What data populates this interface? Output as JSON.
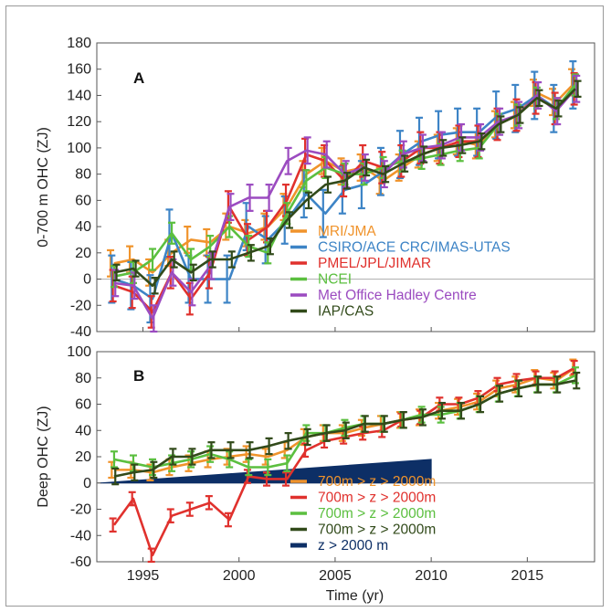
{
  "colors": {
    "MRI/JMA": "#f0932b",
    "CSIRO/ACE CRC/IMAS-UTAS": "#3d84c6",
    "PMEL/JPL/JIMAR": "#e0312d",
    "NCEI": "#5bbf3f",
    "Met Office Hadley Centre": "#9b4bc0",
    "IAP/CAS": "#314a1a",
    "deep": "#0d2f66"
  },
  "chart_data": [
    {
      "type": "line",
      "panel_label": "A",
      "title": "",
      "xlabel": "",
      "ylabel": "0-700 m OHC (ZJ)",
      "xlim": [
        1992.6,
        2018.5
      ],
      "ylim": [
        -40,
        180
      ],
      "yticks": [
        180,
        160,
        140,
        120,
        100,
        80,
        60,
        40,
        20,
        0,
        -20,
        -40
      ],
      "grid": false,
      "legend_position": "bottom-right",
      "x": [
        1993.5,
        1994.5,
        1995.5,
        1996.5,
        1997.5,
        1998.5,
        1999.5,
        2000.5,
        2001.5,
        2002.5,
        2003.5,
        2004.5,
        2005.5,
        2006.5,
        2007.5,
        2008.5,
        2009.5,
        2010.5,
        2011.5,
        2012.5,
        2013.5,
        2014.5,
        2015.5,
        2016.5,
        2017.5
      ],
      "series": [
        {
          "name": "MRI/JMA",
          "values": [
            12,
            15,
            5,
            20,
            30,
            28,
            40,
            35,
            40,
            55,
            80,
            90,
            82,
            85,
            75,
            85,
            95,
            100,
            105,
            102,
            118,
            125,
            142,
            135,
            150
          ],
          "error": 10
        },
        {
          "name": "CSIRO/ACE CRC/IMAS-UTAS",
          "values": [
            0,
            -5,
            -15,
            35,
            0,
            0,
            0,
            40,
            30,
            45,
            65,
            50,
            68,
            72,
            82,
            95,
            105,
            110,
            112,
            112,
            125,
            130,
            140,
            130,
            148
          ],
          "error": 18
        },
        {
          "name": "PMEL/JPL/JIMAR",
          "values": [
            -5,
            -10,
            -25,
            5,
            -15,
            5,
            55,
            30,
            40,
            60,
            95,
            90,
            75,
            90,
            85,
            90,
            100,
            100,
            105,
            105,
            118,
            125,
            138,
            130,
            145
          ],
          "error": 12
        },
        {
          "name": "NCEI",
          "values": [
            2,
            5,
            15,
            35,
            15,
            25,
            40,
            25,
            20,
            50,
            75,
            85,
            80,
            80,
            85,
            90,
            92,
            95,
            98,
            100,
            118,
            125,
            138,
            130,
            148
          ],
          "error": 8
        },
        {
          "name": "Met Office Hadley Centre",
          "values": [
            -3,
            -5,
            -30,
            5,
            -10,
            10,
            55,
            62,
            62,
            90,
            98,
            95,
            80,
            85,
            80,
            95,
            100,
            102,
            108,
            108,
            120,
            125,
            140,
            128,
            145
          ],
          "error": 10
        },
        {
          "name": "IAP/CAS",
          "values": [
            5,
            8,
            -5,
            15,
            5,
            15,
            15,
            20,
            25,
            45,
            60,
            72,
            75,
            85,
            80,
            88,
            95,
            100,
            102,
            105,
            118,
            125,
            138,
            130,
            145
          ],
          "error": 6
        }
      ]
    },
    {
      "type": "line",
      "panel_label": "B",
      "title": "",
      "xlabel": "Time (yr)",
      "ylabel": "Deep OHC (ZJ)",
      "xlim": [
        1992.6,
        2018.5
      ],
      "ylim": [
        -60,
        100
      ],
      "yticks": [
        100,
        80,
        60,
        40,
        20,
        0,
        -20,
        -40,
        -60
      ],
      "xticks": [
        1995,
        2000,
        2005,
        2010,
        2015
      ],
      "grid": false,
      "legend_position": "bottom-right",
      "x": [
        1993.5,
        1994.5,
        1995.5,
        1996.5,
        1997.5,
        1998.5,
        1999.5,
        2000.5,
        2001.5,
        2002.5,
        2003.5,
        2004.5,
        2005.5,
        2006.5,
        2007.5,
        2008.5,
        2009.5,
        2010.5,
        2011.5,
        2012.5,
        2013.5,
        2014.5,
        2015.5,
        2016.5,
        2017.5
      ],
      "series": [
        {
          "name": "700m > z > 2000m",
          "color_key": "MRI/JMA",
          "values": [
            10,
            10,
            8,
            12,
            15,
            18,
            20,
            22,
            20,
            25,
            35,
            38,
            38,
            42,
            45,
            48,
            50,
            55,
            58,
            62,
            72,
            75,
            80,
            78,
            88
          ],
          "error": 6
        },
        {
          "name": "700m > z > 2000m",
          "color_key": "PMEL/JPL/JIMAR",
          "values": [
            -32,
            -12,
            -55,
            -25,
            -20,
            -15,
            -28,
            5,
            3,
            3,
            25,
            32,
            35,
            38,
            40,
            48,
            50,
            60,
            60,
            65,
            75,
            78,
            80,
            80,
            88
          ],
          "error": 5
        },
        {
          "name": "700m > z > 2000m",
          "color_key": "NCEI",
          "values": [
            18,
            15,
            12,
            15,
            18,
            22,
            18,
            12,
            12,
            15,
            38,
            38,
            42,
            45,
            45,
            48,
            52,
            52,
            55,
            60,
            68,
            72,
            75,
            75,
            82
          ],
          "error": 6
        },
        {
          "name": "700m > z > 2000m",
          "color_key": "IAP/CAS",
          "values": [
            5,
            8,
            10,
            20,
            20,
            25,
            25,
            25,
            28,
            32,
            35,
            38,
            40,
            45,
            45,
            48,
            50,
            55,
            55,
            60,
            68,
            72,
            75,
            75,
            78
          ],
          "error": 6
        }
      ],
      "deep_series": {
        "name": "z > 2000 m",
        "x": [
          1992.8,
          2010
        ],
        "lower": [
          0,
          0
        ],
        "upper": [
          0,
          18
        ]
      }
    }
  ]
}
